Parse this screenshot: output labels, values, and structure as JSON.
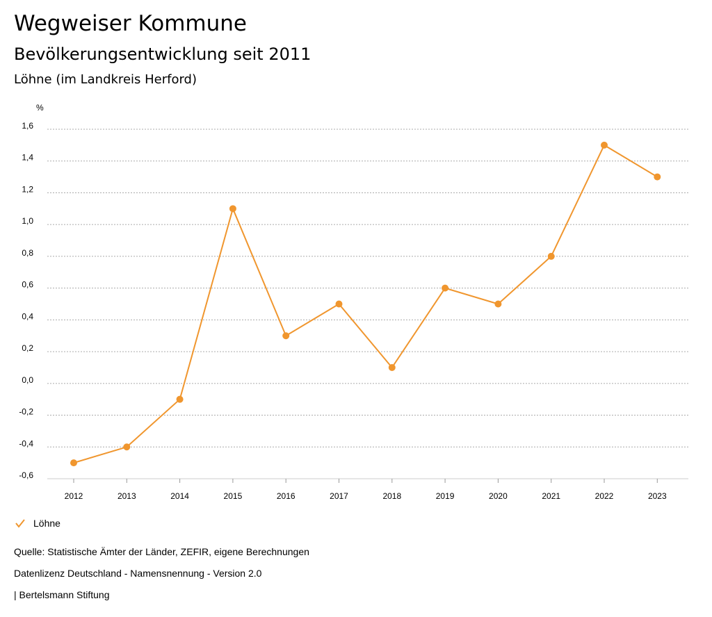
{
  "header": {
    "title": "Wegweiser Kommune",
    "subtitle": "Bevölkerungsentwicklung seit 2011",
    "region": "Löhne (im Landkreis Herford)"
  },
  "legend": {
    "label": "Löhne",
    "color": "#f0962e",
    "icon": "check-icon"
  },
  "footer": {
    "source": "Quelle: Statistische Ämter der Länder, ZEFIR, eigene Berechnungen",
    "license": "Datenlizenz Deutschland - Namensnennung - Version 2.0",
    "publisher": "| Bertelsmann Stiftung"
  },
  "chart_data": {
    "type": "line",
    "title": "Bevölkerungsentwicklung seit 2011",
    "ylabel": "%",
    "xlabel": "",
    "ylim": [
      -0.6,
      1.6
    ],
    "yticks": [
      1.6,
      1.4,
      1.2,
      1.0,
      0.8,
      0.6,
      0.4,
      0.2,
      0.0,
      -0.2,
      -0.4,
      -0.6
    ],
    "ytick_labels": [
      "1,6",
      "1,4",
      "1,2",
      "1,0",
      "0,8",
      "0,6",
      "0,4",
      "0,2",
      "0,0",
      "-0,2",
      "-0,4",
      "-0,6"
    ],
    "categories": [
      "2012",
      "2013",
      "2014",
      "2015",
      "2016",
      "2017",
      "2018",
      "2019",
      "2020",
      "2021",
      "2022",
      "2023"
    ],
    "series": [
      {
        "name": "Löhne",
        "color": "#f0962e",
        "values": [
          -0.5,
          -0.4,
          -0.1,
          1.1,
          0.3,
          0.5,
          0.1,
          0.6,
          0.5,
          0.8,
          1.5,
          1.3
        ]
      }
    ],
    "grid": true,
    "legend_position": "bottom-left"
  }
}
